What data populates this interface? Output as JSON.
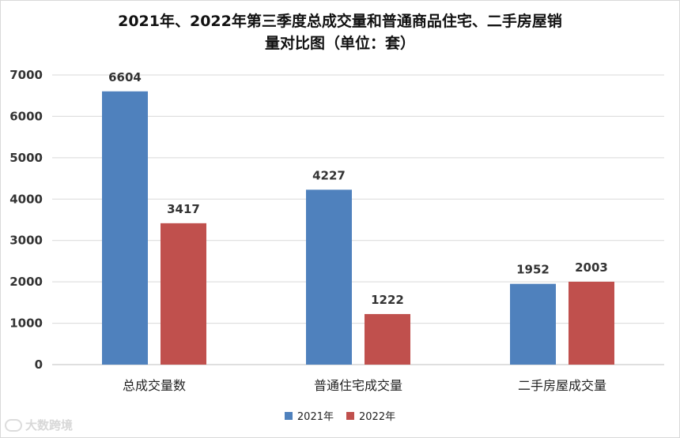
{
  "chart_data": {
    "type": "bar",
    "title_line1": "2021年、2022年第三季度总成交量和普通商品住宅、二手房屋销",
    "title_line2": "量对比图（单位：套）",
    "categories": [
      "总成交量数",
      "普通住宅成交量",
      "二手房屋成交量"
    ],
    "series": [
      {
        "name": "2021年",
        "color": "#4f81bd",
        "values": [
          6604,
          4227,
          1952
        ]
      },
      {
        "name": "2022年",
        "color": "#c0504d",
        "values": [
          3417,
          1222,
          2003
        ]
      }
    ],
    "yticks": [
      0,
      1000,
      2000,
      3000,
      4000,
      5000,
      6000,
      7000
    ],
    "ylim": [
      0,
      7000
    ],
    "grid": true,
    "legend_position": "bottom"
  },
  "watermark": {
    "text": "大数跨境"
  }
}
